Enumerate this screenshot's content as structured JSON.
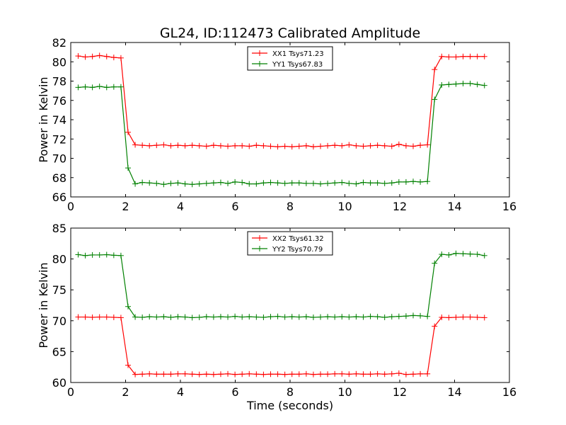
{
  "chart_data": {
    "type": "line",
    "title": "GL24, ID:112473 Calibrated Amplitude",
    "panels": [
      {
        "ylabel": "Power in Kelvin",
        "xlabel": "",
        "xlim": [
          0,
          16
        ],
        "ylim": [
          66,
          82
        ],
        "xticks": [
          0,
          2,
          4,
          6,
          8,
          10,
          12,
          14,
          16
        ],
        "yticks": [
          66,
          68,
          70,
          72,
          74,
          76,
          78,
          80,
          82
        ],
        "legend_position": "top-center",
        "x": [
          0.27,
          0.53,
          0.79,
          1.05,
          1.31,
          1.57,
          1.83,
          2.09,
          2.35,
          2.61,
          2.87,
          3.13,
          3.39,
          3.65,
          3.91,
          4.17,
          4.43,
          4.69,
          4.95,
          5.21,
          5.47,
          5.73,
          5.99,
          6.25,
          6.51,
          6.77,
          7.03,
          7.29,
          7.55,
          7.81,
          8.07,
          8.33,
          8.59,
          8.85,
          9.11,
          9.37,
          9.63,
          9.89,
          10.15,
          10.41,
          10.67,
          10.93,
          11.19,
          11.45,
          11.71,
          11.97,
          12.23,
          12.49,
          12.75,
          13.01,
          13.27,
          13.53,
          13.79,
          14.05,
          14.31,
          14.57,
          14.83,
          15.09
        ],
        "series": [
          {
            "name": "XX1 Tsys71.23",
            "color": "#ff0000",
            "values": [
              80.6,
              80.5,
              80.55,
              80.65,
              80.55,
              80.45,
              80.4,
              72.7,
              71.4,
              71.35,
              71.3,
              71.35,
              71.4,
              71.3,
              71.35,
              71.3,
              71.35,
              71.3,
              71.25,
              71.35,
              71.3,
              71.25,
              71.3,
              71.3,
              71.25,
              71.35,
              71.3,
              71.25,
              71.2,
              71.25,
              71.2,
              71.25,
              71.3,
              71.2,
              71.25,
              71.3,
              71.35,
              71.3,
              71.4,
              71.3,
              71.25,
              71.3,
              71.35,
              71.3,
              71.25,
              71.45,
              71.3,
              71.25,
              71.35,
              71.4,
              79.2,
              80.55,
              80.5,
              80.5,
              80.55,
              80.55,
              80.55,
              80.55
            ]
          },
          {
            "name": "YY1 Tsys67.83",
            "color": "#008000",
            "values": [
              77.35,
              77.4,
              77.35,
              77.45,
              77.35,
              77.4,
              77.4,
              69.0,
              67.35,
              67.5,
              67.45,
              67.4,
              67.3,
              67.4,
              67.45,
              67.35,
              67.3,
              67.35,
              67.4,
              67.45,
              67.5,
              67.4,
              67.55,
              67.5,
              67.35,
              67.35,
              67.45,
              67.5,
              67.45,
              67.4,
              67.45,
              67.45,
              67.4,
              67.4,
              67.35,
              67.4,
              67.45,
              67.5,
              67.4,
              67.35,
              67.5,
              67.45,
              67.45,
              67.4,
              67.45,
              67.55,
              67.55,
              67.6,
              67.55,
              67.6,
              76.1,
              77.6,
              77.65,
              77.7,
              77.75,
              77.75,
              77.65,
              77.55
            ]
          }
        ]
      },
      {
        "ylabel": "Power in Kelvin",
        "xlabel": "Time (seconds)",
        "xlim": [
          0,
          16
        ],
        "ylim": [
          60,
          85
        ],
        "xticks": [
          0,
          2,
          4,
          6,
          8,
          10,
          12,
          14,
          16
        ],
        "yticks": [
          60,
          65,
          70,
          75,
          80,
          85
        ],
        "legend_position": "top-center",
        "x": [
          0.27,
          0.53,
          0.79,
          1.05,
          1.31,
          1.57,
          1.83,
          2.09,
          2.35,
          2.61,
          2.87,
          3.13,
          3.39,
          3.65,
          3.91,
          4.17,
          4.43,
          4.69,
          4.95,
          5.21,
          5.47,
          5.73,
          5.99,
          6.25,
          6.51,
          6.77,
          7.03,
          7.29,
          7.55,
          7.81,
          8.07,
          8.33,
          8.59,
          8.85,
          9.11,
          9.37,
          9.63,
          9.89,
          10.15,
          10.41,
          10.67,
          10.93,
          11.19,
          11.45,
          11.71,
          11.97,
          12.23,
          12.49,
          12.75,
          13.01,
          13.27,
          13.53,
          13.79,
          14.05,
          14.31,
          14.57,
          14.83,
          15.09
        ],
        "series": [
          {
            "name": "XX2 Tsys61.32",
            "color": "#ff0000",
            "values": [
              70.6,
              70.6,
              70.55,
              70.6,
              70.6,
              70.55,
              70.5,
              62.8,
              61.3,
              61.35,
              61.4,
              61.35,
              61.35,
              61.35,
              61.4,
              61.4,
              61.35,
              61.3,
              61.35,
              61.3,
              61.35,
              61.4,
              61.3,
              61.35,
              61.4,
              61.35,
              61.3,
              61.35,
              61.35,
              61.3,
              61.35,
              61.35,
              61.4,
              61.3,
              61.35,
              61.35,
              61.4,
              61.4,
              61.35,
              61.4,
              61.35,
              61.35,
              61.4,
              61.35,
              61.4,
              61.5,
              61.3,
              61.35,
              61.4,
              61.4,
              69.1,
              70.55,
              70.5,
              70.55,
              70.6,
              70.6,
              70.55,
              70.5
            ]
          },
          {
            "name": "YY2 Tsys70.79",
            "color": "#008000",
            "values": [
              80.7,
              80.55,
              80.65,
              80.65,
              80.7,
              80.6,
              80.55,
              72.3,
              70.6,
              70.55,
              70.65,
              70.6,
              70.65,
              70.55,
              70.65,
              70.6,
              70.5,
              70.55,
              70.65,
              70.6,
              70.65,
              70.6,
              70.7,
              70.6,
              70.65,
              70.6,
              70.55,
              70.65,
              70.7,
              70.6,
              70.65,
              70.6,
              70.65,
              70.55,
              70.6,
              70.65,
              70.6,
              70.65,
              70.6,
              70.65,
              70.6,
              70.7,
              70.65,
              70.55,
              70.65,
              70.7,
              70.75,
              70.85,
              70.8,
              70.7,
              79.3,
              80.75,
              80.65,
              80.9,
              80.85,
              80.8,
              80.75,
              80.55
            ]
          }
        ]
      }
    ]
  }
}
